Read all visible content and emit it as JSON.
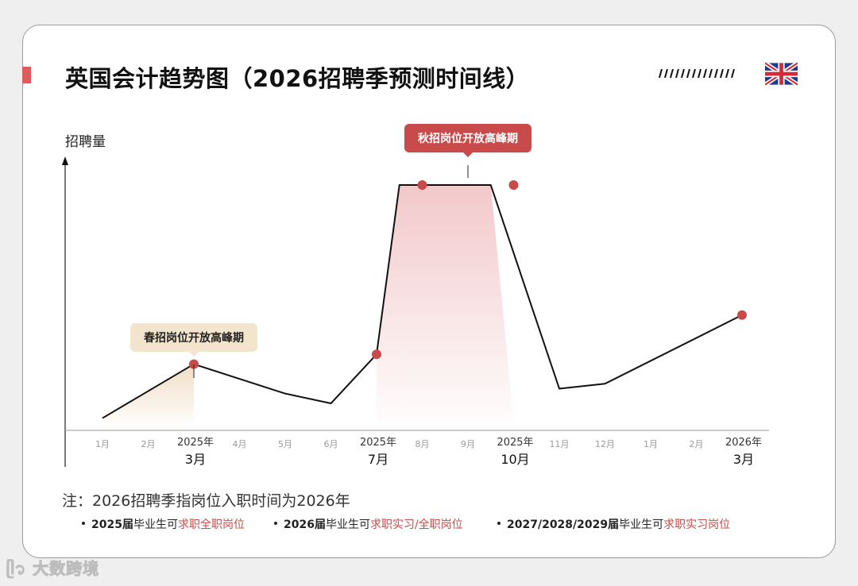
{
  "title": "英国会计趋势图（2026招聘季预测时间线）",
  "ylabel": "招聘量",
  "note": "注：2026招聘季指岗位入职时间为2026年",
  "bullets": [
    {
      "year": "2025届",
      "mid": "毕业生可",
      "action": "求职全职岗位"
    },
    {
      "year": "2026届",
      "mid": "毕业生可",
      "action": "求职实习/全职岗位"
    },
    {
      "year": "2027/2028/2029届",
      "mid": "毕业生可",
      "action": "求职实习岗位"
    }
  ],
  "watermark": "大数跨境",
  "colors": {
    "accent": "#c94a4a",
    "line": "#111111",
    "spring_fill": "#f0dcc2",
    "autumn_fill": "#f2c6c8"
  },
  "chart_data": {
    "type": "line",
    "title": "英国会计趋势图（2026招聘季预测时间线）",
    "ylabel": "招聘量",
    "xlabel": "",
    "categories": [
      "1月",
      "2月",
      "3月",
      "4月",
      "5月",
      "6月",
      "7月",
      "8月",
      "9月",
      "10月",
      "11月",
      "12月",
      "1月",
      "2月",
      "3月"
    ],
    "major_labels": [
      {
        "index": 2,
        "year": "2025年",
        "month": "3月"
      },
      {
        "index": 6,
        "year": "2025年",
        "month": "7月"
      },
      {
        "index": 9,
        "year": "2025年",
        "month": "10月"
      },
      {
        "index": 14,
        "year": "2026年",
        "month": "3月"
      }
    ],
    "series": [
      {
        "values": [
          5,
          16,
          27,
          null,
          15,
          11,
          31,
          100,
          null,
          100,
          17,
          19,
          null,
          null,
          47
        ]
      }
    ],
    "x_positions": [
      0,
      1,
      2,
      4,
      5,
      6,
      6.5,
      8.5,
      10,
      11,
      14
    ],
    "y_values": [
      5,
      16,
      27,
      15,
      11,
      31,
      100,
      100,
      17,
      19,
      47
    ],
    "marked_points": [
      2,
      6,
      7,
      9,
      14
    ],
    "ylim": [
      0,
      110
    ],
    "annotations": [
      {
        "label": "春招岗位开放高峰期",
        "at_index": 2,
        "style": "beige"
      },
      {
        "label": "秋招岗位开放高峰期",
        "from_index": 7,
        "to_index": 9,
        "style": "red"
      }
    ],
    "shaded_regions": [
      {
        "from": 0,
        "to": 2,
        "color": "beige"
      },
      {
        "from": 6,
        "to": 9,
        "color": "red"
      }
    ],
    "grid": false
  }
}
